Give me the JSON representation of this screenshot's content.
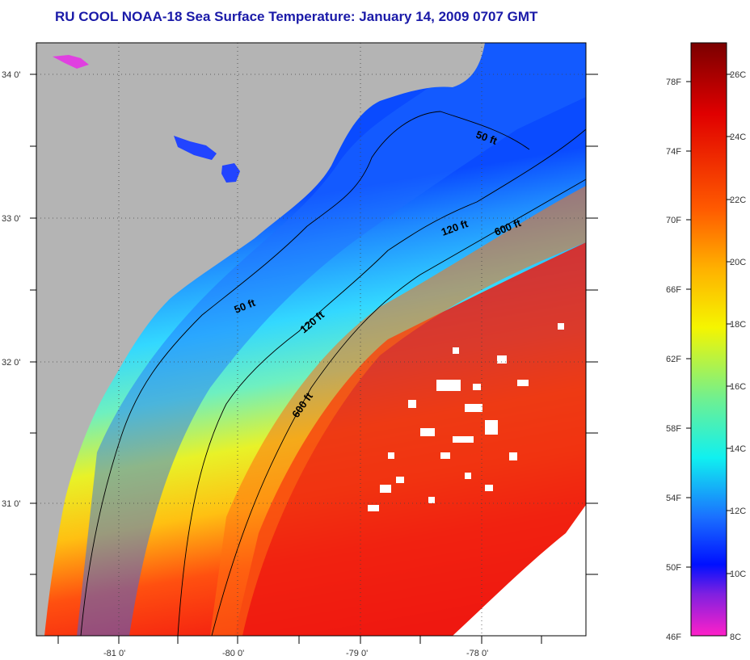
{
  "title": "RU COOL  NOAA-18  Sea Surface Temperature:  January 14, 2009 0707 GMT",
  "lat_labels": [
    "34 0'",
    "33 0'",
    "32 0'",
    "31 0'"
  ],
  "lon_labels": [
    "-81 0'",
    "-80 0'",
    "-79 0'",
    "-78 0'"
  ],
  "contour_labels": {
    "c50_north": "50 ft",
    "c50_south": "50 ft",
    "c120_north": "120 ft",
    "c120_south": "120 ft",
    "c600_north": "600 ft",
    "c600_south": "600 ft"
  },
  "colorbar": {
    "fahrenheit": [
      "78F",
      "74F",
      "70F",
      "66F",
      "62F",
      "58F",
      "54F",
      "50F",
      "46F"
    ],
    "celsius": [
      "26C",
      "24C",
      "22C",
      "20C",
      "18C",
      "16C",
      "14C",
      "12C",
      "10C",
      "8C"
    ]
  },
  "colors": {
    "land": "#b4b4b4",
    "title": "#1a1aa8"
  }
}
